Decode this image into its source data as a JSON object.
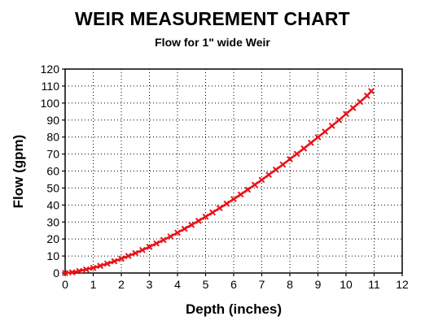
{
  "chart_data": {
    "type": "line",
    "title": "WEIR MEASUREMENT CHART",
    "subtitle": "Flow for 1\" wide Weir",
    "xlabel": "Depth (inches)",
    "ylabel": "Flow (gpm)",
    "xlim": [
      0,
      12
    ],
    "ylim": [
      0,
      120
    ],
    "xticks": [
      "0",
      "1",
      "2",
      "3",
      "4",
      "5",
      "6",
      "7",
      "8",
      "9",
      "10",
      "11",
      "12"
    ],
    "yticks": [
      "0",
      "10",
      "20",
      "30",
      "40",
      "50",
      "60",
      "70",
      "80",
      "90",
      "100",
      "110",
      "120"
    ],
    "grid": true,
    "grid_style": "dotted",
    "legend": "none",
    "series": [
      {
        "color": "#e8141a",
        "marker": "x",
        "x": [
          0,
          0.25,
          0.5,
          0.75,
          1,
          1.25,
          1.5,
          1.75,
          2,
          2.25,
          2.5,
          2.75,
          3,
          3.25,
          3.5,
          3.75,
          4,
          4.25,
          4.5,
          4.75,
          5,
          5.25,
          5.5,
          5.75,
          6,
          6.25,
          6.5,
          6.75,
          7,
          7.25,
          7.5,
          7.75,
          8,
          8.25,
          8.5,
          8.75,
          9,
          9.25,
          9.5,
          9.75,
          10,
          10.25,
          10.5,
          10.75,
          10.9
        ],
        "y": [
          0,
          0.4,
          1.2,
          2.1,
          3.0,
          4.2,
          5.5,
          6.9,
          8.4,
          10.0,
          11.7,
          13.5,
          15.4,
          17.4,
          19.4,
          21.5,
          23.7,
          26.0,
          28.3,
          30.7,
          33.1,
          35.6,
          38.2,
          40.8,
          43.5,
          46.2,
          49.0,
          51.9,
          54.8,
          57.8,
          60.8,
          63.8,
          67.0,
          70.1,
          73.3,
          76.6,
          79.9,
          83.2,
          86.6,
          90.0,
          93.6,
          97.1,
          100.7,
          104.3,
          107.0
        ]
      }
    ]
  }
}
